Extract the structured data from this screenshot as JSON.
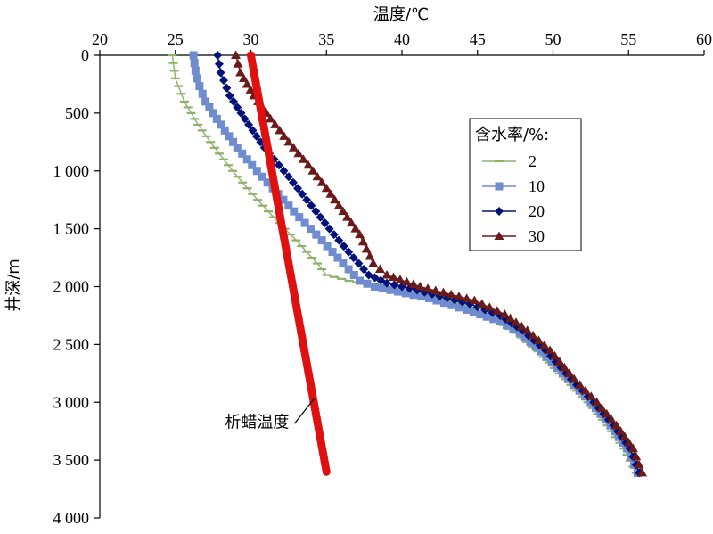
{
  "chart_data": {
    "type": "line",
    "orientation": "depth-down",
    "xlabel": "温度/℃",
    "ylabel": "井深/m",
    "xlim": [
      20,
      60
    ],
    "ylim": [
      0,
      4000
    ],
    "x_ticks": [
      "20",
      "25",
      "30",
      "35",
      "40",
      "45",
      "50",
      "55",
      "60"
    ],
    "y_ticks": [
      "0",
      "500",
      "1 000",
      "1 500",
      "2 000",
      "2 500",
      "3 000",
      "3 500",
      "4 000"
    ],
    "x_axis_position": "top",
    "grid": false,
    "legend": {
      "title": "含水率/%:",
      "placement": "top-right",
      "entries": [
        "2",
        "10",
        "20",
        "30"
      ]
    },
    "series": [
      {
        "name": "2",
        "color": "#8fb26a",
        "marker": "dash",
        "points": [
          [
            24.8,
            0
          ],
          [
            25,
            200
          ],
          [
            25.6,
            400
          ],
          [
            26.5,
            600
          ],
          [
            27.6,
            800
          ],
          [
            28.8,
            1000
          ],
          [
            30.1,
            1200
          ],
          [
            31.5,
            1400
          ],
          [
            33,
            1600
          ],
          [
            34.4,
            1800
          ],
          [
            35,
            1900
          ],
          [
            36.5,
            1950
          ],
          [
            38.5,
            2000
          ],
          [
            41,
            2060
          ],
          [
            44,
            2150
          ],
          [
            46.3,
            2300
          ],
          [
            47.5,
            2400
          ],
          [
            49,
            2560
          ],
          [
            50.8,
            2800
          ],
          [
            52.3,
            3000
          ],
          [
            53.6,
            3200
          ],
          [
            54.7,
            3400
          ],
          [
            55.5,
            3610
          ]
        ]
      },
      {
        "name": "10",
        "color": "#6f8ccf",
        "marker": "square",
        "points": [
          [
            26.2,
            0
          ],
          [
            26.4,
            200
          ],
          [
            27,
            400
          ],
          [
            28,
            600
          ],
          [
            29.1,
            800
          ],
          [
            30.4,
            1000
          ],
          [
            31.8,
            1200
          ],
          [
            33.2,
            1400
          ],
          [
            34.7,
            1600
          ],
          [
            36.1,
            1800
          ],
          [
            37.2,
            1950
          ],
          [
            38.2,
            2000
          ],
          [
            41.8,
            2100
          ],
          [
            44.3,
            2200
          ],
          [
            46.5,
            2300
          ],
          [
            47.8,
            2400
          ],
          [
            49.2,
            2560
          ],
          [
            51,
            2800
          ],
          [
            52.5,
            3000
          ],
          [
            53.8,
            3200
          ],
          [
            54.9,
            3400
          ],
          [
            55.6,
            3610
          ]
        ]
      },
      {
        "name": "20",
        "color": "#00127a",
        "marker": "diamond",
        "points": [
          [
            27.8,
            0
          ],
          [
            28,
            150
          ],
          [
            28.6,
            350
          ],
          [
            29.6,
            550
          ],
          [
            30.9,
            800
          ],
          [
            32.5,
            1050
          ],
          [
            34,
            1300
          ],
          [
            35.5,
            1550
          ],
          [
            36.8,
            1750
          ],
          [
            37.8,
            1900
          ],
          [
            39,
            1970
          ],
          [
            41,
            2030
          ],
          [
            44.5,
            2150
          ],
          [
            46.5,
            2250
          ],
          [
            48,
            2380
          ],
          [
            49.5,
            2550
          ],
          [
            51.2,
            2800
          ],
          [
            52.7,
            3000
          ],
          [
            54,
            3200
          ],
          [
            55.1,
            3400
          ],
          [
            55.7,
            3610
          ]
        ]
      },
      {
        "name": "30",
        "color": "#6b1a1a",
        "marker": "triangle",
        "points": [
          [
            29,
            0
          ],
          [
            29.3,
            150
          ],
          [
            30.2,
            350
          ],
          [
            31.3,
            550
          ],
          [
            32.5,
            750
          ],
          [
            33.8,
            950
          ],
          [
            35,
            1150
          ],
          [
            36.1,
            1350
          ],
          [
            37.2,
            1550
          ],
          [
            38.1,
            1800
          ],
          [
            39,
            1900
          ],
          [
            41.2,
            2000
          ],
          [
            44.8,
            2120
          ],
          [
            46.8,
            2240
          ],
          [
            48.3,
            2380
          ],
          [
            49.8,
            2550
          ],
          [
            51.4,
            2800
          ],
          [
            52.9,
            3000
          ],
          [
            54.2,
            3200
          ],
          [
            55.3,
            3400
          ],
          [
            55.9,
            3610
          ]
        ]
      },
      {
        "name": "析蜡温度",
        "color": "#e01010",
        "marker": "circle",
        "points": [
          [
            30,
            0
          ],
          [
            35,
            3600
          ]
        ]
      }
    ],
    "annotations": [
      {
        "text": "析蜡温度",
        "points_to_series": "析蜡温度",
        "at": [
          34.3,
          3000
        ]
      }
    ]
  }
}
